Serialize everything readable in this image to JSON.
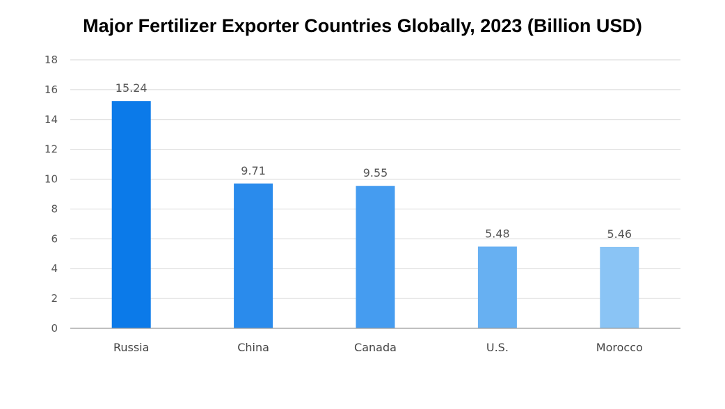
{
  "chart_data": {
    "type": "bar",
    "title": "Major Fertilizer Exporter Countries Globally, 2023 (Billion USD)",
    "xlabel": "",
    "ylabel": "",
    "categories": [
      "Russia",
      "China",
      "Canada",
      "U.S.",
      "Morocco"
    ],
    "values": [
      15.24,
      9.71,
      9.55,
      5.48,
      5.46
    ],
    "data_labels": [
      "15.24",
      "9.71",
      "9.55",
      "5.48",
      "5.46"
    ],
    "ylim": [
      0,
      18
    ],
    "yticks": [
      0,
      2,
      4,
      6,
      8,
      10,
      12,
      14,
      16,
      18
    ],
    "grid": true,
    "legend": "none",
    "colors": {
      "bars": [
        "#0b7ae9",
        "#2a8bec",
        "#459cf0",
        "#67b0f2",
        "#8ac4f5"
      ],
      "grid": "#d6d6d6",
      "axis": "#9a9a9a"
    }
  }
}
